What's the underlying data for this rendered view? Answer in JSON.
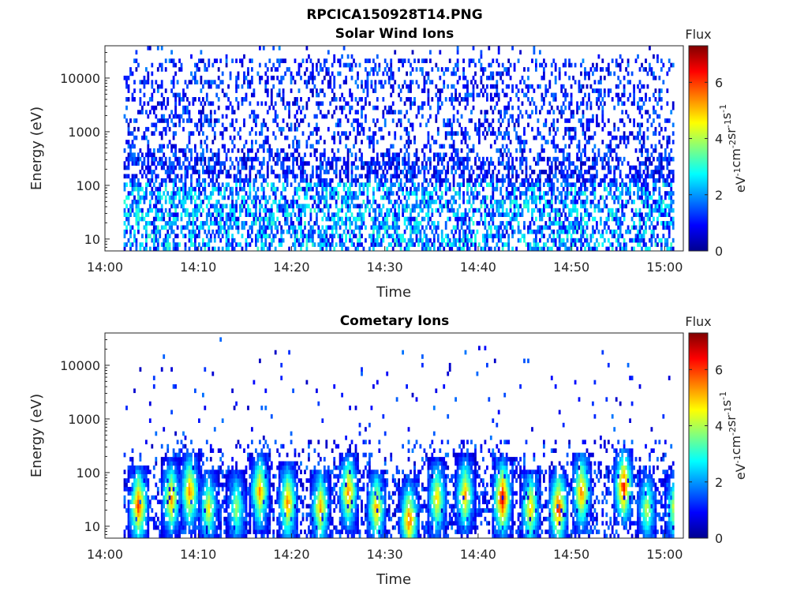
{
  "figure_title": "RPCICA150928T14.PNG",
  "chart_data": [
    {
      "type": "heatmap",
      "title": "Solar Wind Ions",
      "xlabel": "Time",
      "ylabel": "Energy (eV)",
      "x_ticks": [
        "14:00",
        "14:10",
        "14:20",
        "14:30",
        "14:40",
        "14:50",
        "15:00"
      ],
      "x_range": [
        "14:00",
        "15:02"
      ],
      "data_range": [
        "14:02",
        "15:01"
      ],
      "y_scale": "log",
      "y_ticks": [
        "10",
        "100",
        "1000",
        "10000"
      ],
      "y_tick_values": [
        10,
        100,
        1000,
        10000
      ],
      "ylim": [
        6,
        40000
      ],
      "colorbar": {
        "title": "Flux",
        "label": "eV-1 cm-2 sr-1 s-1",
        "ticks": [
          "0",
          "2",
          "4",
          "6"
        ],
        "range": [
          0,
          7.3
        ],
        "colormap": "jet"
      },
      "description_profile": "sparse low-flux (0.3-2) counts across all energies, higher density 6-300 eV with flux 1-3.5"
    },
    {
      "type": "heatmap",
      "title": "Cometary Ions",
      "xlabel": "Time",
      "ylabel": "Energy (eV)",
      "x_ticks": [
        "14:00",
        "14:10",
        "14:20",
        "14:30",
        "14:40",
        "14:50",
        "15:00"
      ],
      "x_range": [
        "14:00",
        "15:02"
      ],
      "data_range": [
        "14:02",
        "15:01"
      ],
      "y_scale": "log",
      "y_ticks": [
        "10",
        "100",
        "1000",
        "10000"
      ],
      "y_tick_values": [
        10,
        100,
        1000,
        10000
      ],
      "ylim": [
        6,
        40000
      ],
      "colorbar": {
        "title": "Flux",
        "label": "eV-1 cm-2 sr-1 s-1",
        "ticks": [
          "0",
          "2",
          "4",
          "6"
        ],
        "range": [
          0,
          7.3
        ],
        "colormap": "jet"
      },
      "bursts": [
        {
          "time": "14:03.5",
          "peak_energy": 22,
          "peak_flux": 6.2
        },
        {
          "time": "14:07.0",
          "peak_energy": 30,
          "peak_flux": 5.3
        },
        {
          "time": "14:09.0",
          "peak_energy": 40,
          "peak_flux": 5.6
        },
        {
          "time": "14:11.0",
          "peak_energy": 20,
          "peak_flux": 4.6
        },
        {
          "time": "14:14.0",
          "peak_energy": 20,
          "peak_flux": 4.0
        },
        {
          "time": "14:16.5",
          "peak_energy": 40,
          "peak_flux": 5.4
        },
        {
          "time": "14:19.5",
          "peak_energy": 25,
          "peak_flux": 5.6
        },
        {
          "time": "14:23.0",
          "peak_energy": 20,
          "peak_flux": 5.3
        },
        {
          "time": "14:26.0",
          "peak_energy": 40,
          "peak_flux": 5.6
        },
        {
          "time": "14:29.0",
          "peak_energy": 20,
          "peak_flux": 5.2
        },
        {
          "time": "14:32.5",
          "peak_energy": 12,
          "peak_flux": 5.8
        },
        {
          "time": "14:35.5",
          "peak_energy": 30,
          "peak_flux": 5.0
        },
        {
          "time": "14:38.5",
          "peak_energy": 35,
          "peak_flux": 5.2
        },
        {
          "time": "14:42.5",
          "peak_energy": 30,
          "peak_flux": 6.8
        },
        {
          "time": "14:45.5",
          "peak_energy": 20,
          "peak_flux": 5.2
        },
        {
          "time": "14:48.5",
          "peak_energy": 20,
          "peak_flux": 6.3
        },
        {
          "time": "14:51.0",
          "peak_energy": 40,
          "peak_flux": 5.6
        },
        {
          "time": "14:55.5",
          "peak_energy": 50,
          "peak_flux": 6.4
        },
        {
          "time": "14:58.0",
          "peak_energy": 20,
          "peak_flux": 4.2
        },
        {
          "time": "15:01.0",
          "peak_energy": 20,
          "peak_flux": 4.6
        }
      ]
    }
  ]
}
